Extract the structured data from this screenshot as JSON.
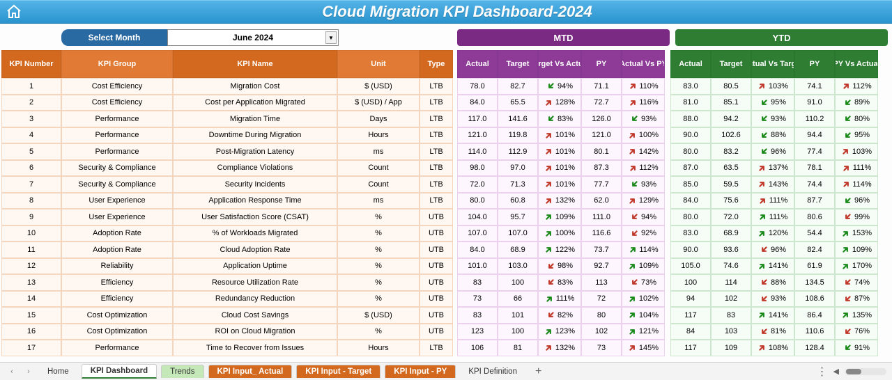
{
  "title": "Cloud Migration KPI Dashboard-2024",
  "select_month_label": "Select Month",
  "selected_month": "June 2024",
  "section_mtd": "MTD",
  "section_ytd": "YTD",
  "headers": {
    "kpi_number": "KPI Number",
    "kpi_group": "KPI Group",
    "kpi_name": "KPI Name",
    "unit": "Unit",
    "type": "Type",
    "actual": "Actual",
    "target": "Target",
    "target_vs_actual": "Target Vs Actual",
    "py": "PY",
    "actual_vs_py": "Actual Vs PY",
    "actual_vs_target": "Actual Vs Target",
    "py_vs_actual": "PY Vs Actual"
  },
  "rows": [
    {
      "n": "1",
      "group": "Cost Efficiency",
      "name": "Migration Cost",
      "unit": "$ (USD)",
      "type": "LTB",
      "mtd": {
        "actual": "78.0",
        "target": "82.7",
        "tva": "94%",
        "tva_dir": "good-down",
        "py": "71.1",
        "avp": "110%",
        "avp_dir": "bad-up"
      },
      "ytd": {
        "actual": "83.0",
        "target": "80.5",
        "avt": "103%",
        "avt_dir": "bad-up",
        "py": "74.1",
        "pva": "112%",
        "pva_dir": "bad-up"
      }
    },
    {
      "n": "2",
      "group": "Cost Efficiency",
      "name": "Cost per Application Migrated",
      "unit": "$ (USD) / App",
      "type": "LTB",
      "mtd": {
        "actual": "84.0",
        "target": "65.5",
        "tva": "128%",
        "tva_dir": "bad-up",
        "py": "72.7",
        "avp": "116%",
        "avp_dir": "bad-up"
      },
      "ytd": {
        "actual": "81.0",
        "target": "85.1",
        "avt": "95%",
        "avt_dir": "good-down",
        "py": "91.0",
        "pva": "89%",
        "pva_dir": "good-down"
      }
    },
    {
      "n": "3",
      "group": "Performance",
      "name": "Migration Time",
      "unit": "Days",
      "type": "LTB",
      "mtd": {
        "actual": "117.0",
        "target": "141.6",
        "tva": "83%",
        "tva_dir": "good-down",
        "py": "126.0",
        "avp": "93%",
        "avp_dir": "good-down"
      },
      "ytd": {
        "actual": "88.0",
        "target": "94.2",
        "avt": "93%",
        "avt_dir": "good-down",
        "py": "110.2",
        "pva": "80%",
        "pva_dir": "good-down"
      }
    },
    {
      "n": "4",
      "group": "Performance",
      "name": "Downtime During Migration",
      "unit": "Hours",
      "type": "LTB",
      "mtd": {
        "actual": "121.0",
        "target": "119.8",
        "tva": "101%",
        "tva_dir": "bad-up",
        "py": "121.0",
        "avp": "100%",
        "avp_dir": "bad-up"
      },
      "ytd": {
        "actual": "90.0",
        "target": "102.6",
        "avt": "88%",
        "avt_dir": "good-down",
        "py": "94.4",
        "pva": "95%",
        "pva_dir": "good-down"
      }
    },
    {
      "n": "5",
      "group": "Performance",
      "name": "Post-Migration Latency",
      "unit": "ms",
      "type": "LTB",
      "mtd": {
        "actual": "114.0",
        "target": "112.9",
        "tva": "101%",
        "tva_dir": "bad-up",
        "py": "80.1",
        "avp": "142%",
        "avp_dir": "bad-up"
      },
      "ytd": {
        "actual": "80.0",
        "target": "83.2",
        "avt": "96%",
        "avt_dir": "good-down",
        "py": "77.4",
        "pva": "103%",
        "pva_dir": "bad-up"
      }
    },
    {
      "n": "6",
      "group": "Security & Compliance",
      "name": "Compliance Violations",
      "unit": "Count",
      "type": "LTB",
      "mtd": {
        "actual": "98.0",
        "target": "97.0",
        "tva": "101%",
        "tva_dir": "bad-up",
        "py": "87.3",
        "avp": "112%",
        "avp_dir": "bad-up"
      },
      "ytd": {
        "actual": "87.0",
        "target": "63.5",
        "avt": "137%",
        "avt_dir": "bad-up",
        "py": "78.1",
        "pva": "111%",
        "pva_dir": "bad-up"
      }
    },
    {
      "n": "7",
      "group": "Security & Compliance",
      "name": "Security Incidents",
      "unit": "Count",
      "type": "LTB",
      "mtd": {
        "actual": "72.0",
        "target": "71.3",
        "tva": "101%",
        "tva_dir": "bad-up",
        "py": "77.7",
        "avp": "93%",
        "avp_dir": "good-down"
      },
      "ytd": {
        "actual": "85.0",
        "target": "59.5",
        "avt": "143%",
        "avt_dir": "bad-up",
        "py": "74.4",
        "pva": "114%",
        "pva_dir": "bad-up"
      }
    },
    {
      "n": "8",
      "group": "User Experience",
      "name": "Application Response Time",
      "unit": "ms",
      "type": "LTB",
      "mtd": {
        "actual": "80.0",
        "target": "60.8",
        "tva": "132%",
        "tva_dir": "bad-up",
        "py": "62.0",
        "avp": "129%",
        "avp_dir": "bad-up"
      },
      "ytd": {
        "actual": "84.0",
        "target": "75.6",
        "avt": "111%",
        "avt_dir": "bad-up",
        "py": "87.7",
        "pva": "96%",
        "pva_dir": "good-down"
      }
    },
    {
      "n": "9",
      "group": "User Experience",
      "name": "User Satisfaction Score (CSAT)",
      "unit": "%",
      "type": "UTB",
      "mtd": {
        "actual": "104.0",
        "target": "95.7",
        "tva": "109%",
        "tva_dir": "good-up",
        "py": "111.0",
        "avp": "94%",
        "avp_dir": "bad-down"
      },
      "ytd": {
        "actual": "80.0",
        "target": "72.0",
        "avt": "111%",
        "avt_dir": "good-up",
        "py": "80.6",
        "pva": "99%",
        "pva_dir": "bad-down"
      }
    },
    {
      "n": "10",
      "group": "Adoption Rate",
      "name": "% of Workloads Migrated",
      "unit": "%",
      "type": "UTB",
      "mtd": {
        "actual": "107.0",
        "target": "107.0",
        "tva": "100%",
        "tva_dir": "good-up",
        "py": "116.6",
        "avp": "92%",
        "avp_dir": "bad-down"
      },
      "ytd": {
        "actual": "83.0",
        "target": "68.9",
        "avt": "120%",
        "avt_dir": "good-up",
        "py": "54.4",
        "pva": "153%",
        "pva_dir": "good-up"
      }
    },
    {
      "n": "11",
      "group": "Adoption Rate",
      "name": "Cloud Adoption Rate",
      "unit": "%",
      "type": "UTB",
      "mtd": {
        "actual": "84.0",
        "target": "68.9",
        "tva": "122%",
        "tva_dir": "good-up",
        "py": "73.7",
        "avp": "114%",
        "avp_dir": "good-up"
      },
      "ytd": {
        "actual": "90.0",
        "target": "93.6",
        "avt": "96%",
        "avt_dir": "bad-down",
        "py": "82.4",
        "pva": "109%",
        "pva_dir": "good-up"
      }
    },
    {
      "n": "12",
      "group": "Reliability",
      "name": "Application Uptime",
      "unit": "%",
      "type": "UTB",
      "mtd": {
        "actual": "101.0",
        "target": "103.0",
        "tva": "98%",
        "tva_dir": "bad-down",
        "py": "92.7",
        "avp": "109%",
        "avp_dir": "good-up"
      },
      "ytd": {
        "actual": "105.0",
        "target": "74.6",
        "avt": "141%",
        "avt_dir": "good-up",
        "py": "61.9",
        "pva": "170%",
        "pva_dir": "good-up"
      }
    },
    {
      "n": "13",
      "group": "Efficiency",
      "name": "Resource Utilization Rate",
      "unit": "%",
      "type": "UTB",
      "mtd": {
        "actual": "83",
        "target": "100",
        "tva": "83%",
        "tva_dir": "bad-down",
        "py": "113",
        "avp": "73%",
        "avp_dir": "bad-down"
      },
      "ytd": {
        "actual": "100",
        "target": "114",
        "avt": "88%",
        "avt_dir": "bad-down",
        "py": "134.5",
        "pva": "74%",
        "pva_dir": "bad-down"
      }
    },
    {
      "n": "14",
      "group": "Efficiency",
      "name": "Redundancy Reduction",
      "unit": "%",
      "type": "UTB",
      "mtd": {
        "actual": "73",
        "target": "66",
        "tva": "111%",
        "tva_dir": "good-up",
        "py": "72",
        "avp": "102%",
        "avp_dir": "good-up"
      },
      "ytd": {
        "actual": "94",
        "target": "102",
        "avt": "93%",
        "avt_dir": "bad-down",
        "py": "108.6",
        "pva": "87%",
        "pva_dir": "bad-down"
      }
    },
    {
      "n": "15",
      "group": "Cost Optimization",
      "name": "Cloud Cost Savings",
      "unit": "$ (USD)",
      "type": "UTB",
      "mtd": {
        "actual": "83",
        "target": "101",
        "tva": "82%",
        "tva_dir": "bad-down",
        "py": "80",
        "avp": "104%",
        "avp_dir": "good-up"
      },
      "ytd": {
        "actual": "117",
        "target": "83",
        "avt": "141%",
        "avt_dir": "good-up",
        "py": "86.4",
        "pva": "135%",
        "pva_dir": "good-up"
      }
    },
    {
      "n": "16",
      "group": "Cost Optimization",
      "name": "ROI on Cloud Migration",
      "unit": "%",
      "type": "UTB",
      "mtd": {
        "actual": "123",
        "target": "100",
        "tva": "123%",
        "tva_dir": "good-up",
        "py": "102",
        "avp": "121%",
        "avp_dir": "good-up"
      },
      "ytd": {
        "actual": "84",
        "target": "103",
        "avt": "81%",
        "avt_dir": "bad-down",
        "py": "110.6",
        "pva": "76%",
        "pva_dir": "bad-down"
      }
    },
    {
      "n": "17",
      "group": "Performance",
      "name": "Time to Recover from Issues",
      "unit": "Hours",
      "type": "LTB",
      "mtd": {
        "actual": "106",
        "target": "81",
        "tva": "132%",
        "tva_dir": "bad-up",
        "py": "73",
        "avp": "145%",
        "avp_dir": "bad-up"
      },
      "ytd": {
        "actual": "117",
        "target": "109",
        "avt": "108%",
        "avt_dir": "bad-up",
        "py": "128.4",
        "pva": "91%",
        "pva_dir": "good-down"
      }
    }
  ],
  "tabs": {
    "home": "Home",
    "kpi_dashboard": "KPI Dashboard",
    "trends": "Trends",
    "input_actual": "KPI Input_ Actual",
    "input_target": "KPI Input - Target",
    "input_py": "KPI Input - PY",
    "definition": "KPI Definition"
  },
  "colors": {
    "title_bg_top": "#54b4e6",
    "title_bg_bot": "#2a94ce",
    "orange": "#d2691e",
    "purple": "#8e3a97",
    "green": "#2e7d32",
    "good": "#1a8a1a",
    "bad": "#c0392b"
  }
}
